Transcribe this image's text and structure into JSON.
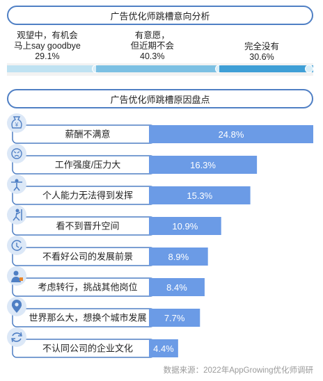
{
  "intent": {
    "title": "广告优化师跳槽意向分析",
    "segments": [
      {
        "line1": "观望中，有机会",
        "line2": "马上say goodbye",
        "value_label": "29.1%",
        "value": 29.1,
        "color": "#bfe2f2"
      },
      {
        "line1": "有意愿，",
        "line2": "但近期不会",
        "value_label": "40.3%",
        "value": 40.3,
        "color": "#7cc0e3"
      },
      {
        "line1": "完全没有",
        "line2": "",
        "value_label": "30.6%",
        "value": 30.6,
        "color": "#3f9fd6"
      }
    ]
  },
  "reasons": {
    "title": "广告优化师跳槽原因盘点"
  },
  "chart_data": {
    "type": "bar",
    "orientation": "horizontal",
    "title": "广告优化师跳槽原因盘点",
    "categories": [
      "薪酬不满意",
      "工作强度/压力大",
      "个人能力无法得到发挥",
      "看不到晋升空间",
      "不看好公司的发展前景",
      "考虑转行，挑战其他岗位",
      "世界那么大，想换个城市发展",
      "不认同公司的企业文化"
    ],
    "values": [
      24.8,
      16.3,
      15.3,
      10.9,
      8.9,
      8.4,
      7.7,
      4.4
    ],
    "value_labels": [
      "24.8%",
      "16.3%",
      "15.3%",
      "10.9%",
      "8.9%",
      "8.4%",
      "7.7%",
      "4.4%"
    ],
    "icons": [
      "money-bag-icon",
      "stress-face-icon",
      "lifting-person-icon",
      "climbing-person-icon",
      "clock-arrow-icon",
      "person-switch-icon",
      "location-pin-icon",
      "refresh-icon"
    ],
    "bar_color": "#6b9be6",
    "xlim": [
      0,
      24.8
    ]
  },
  "source": "数据来源：2022年AppGrowing优化师调研"
}
